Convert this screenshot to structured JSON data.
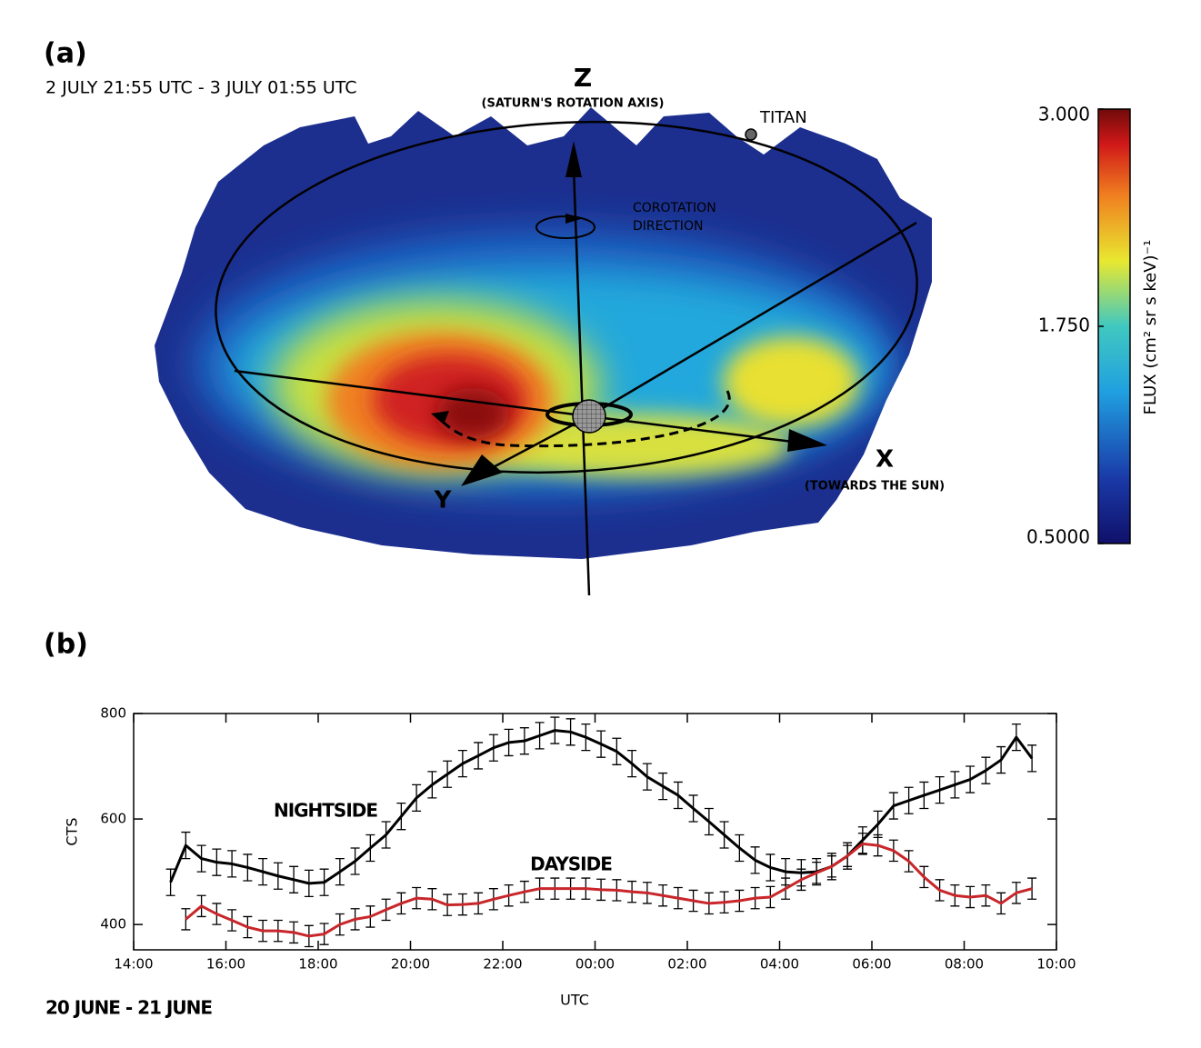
{
  "chart_data": [
    {
      "type": "image",
      "panel_label": "(a)",
      "subtitle": "2 JULY 21:55 UTC - 3 JULY 01:55 UTC",
      "annotations": [
        "Z",
        "(SATURN'S ROTATION AXIS)",
        "TITAN",
        "COROTATION",
        "DIRECTION",
        "X",
        "(TOWARDS THE SUN)",
        "Y"
      ],
      "colorbar": {
        "label": "FLUX (cm² sr s keV)⁻¹",
        "clim": [
          0.5,
          3.0
        ],
        "ticks": [
          {
            "value": 0.5,
            "label": "0.5000"
          },
          {
            "value": 1.75,
            "label": "1.750"
          },
          {
            "value": 3,
            "label": "3.000"
          }
        ]
      }
    },
    {
      "type": "line",
      "panel_label": "(b)",
      "date_label": "20 JUNE - 21 JUNE",
      "xlabel": "UTC",
      "ylabel": "CTS",
      "x": [
        14.8,
        15.13,
        15.47,
        15.8,
        16.13,
        16.47,
        16.8,
        17.13,
        17.47,
        17.8,
        18.13,
        18.47,
        18.8,
        19.13,
        19.47,
        19.8,
        20.13,
        20.47,
        20.8,
        21.13,
        21.47,
        21.8,
        22.13,
        22.47,
        22.8,
        23.13,
        23.47,
        23.8,
        24.13,
        24.47,
        24.8,
        25.13,
        25.47,
        25.8,
        26.13,
        26.47,
        26.8,
        27.13,
        27.47,
        27.8,
        28.13,
        28.47,
        28.8,
        29.13,
        29.47,
        29.8,
        30.13,
        30.47,
        30.8,
        31.13,
        31.47,
        31.8,
        32.13,
        32.47,
        32.8,
        33.13,
        33.47
      ],
      "xlim": [
        14,
        34
      ],
      "xticks": [
        {
          "value": 14,
          "label": "14:00"
        },
        {
          "value": 16,
          "label": "16:00"
        },
        {
          "value": 18,
          "label": "18:00"
        },
        {
          "value": 20,
          "label": "20:00"
        },
        {
          "value": 22,
          "label": "22:00"
        },
        {
          "value": 24,
          "label": "00:00"
        },
        {
          "value": 26,
          "label": "02:00"
        },
        {
          "value": 28,
          "label": "04:00"
        },
        {
          "value": 30,
          "label": "06:00"
        },
        {
          "value": 32,
          "label": "08:00"
        },
        {
          "value": 34,
          "label": "10:00"
        }
      ],
      "ylim": [
        352,
        800
      ],
      "yticks": [
        400,
        600,
        800
      ],
      "series": [
        {
          "name": "NIGHTSIDE",
          "color": "#000000",
          "error": 25,
          "values": [
            480,
            550,
            525,
            518,
            515,
            508,
            500,
            492,
            485,
            478,
            480,
            500,
            520,
            545,
            570,
            605,
            640,
            665,
            685,
            705,
            720,
            735,
            745,
            748,
            758,
            768,
            765,
            755,
            742,
            728,
            705,
            680,
            662,
            645,
            620,
            595,
            570,
            545,
            522,
            508,
            500,
            498,
            500,
            510,
            530,
            560,
            590,
            625,
            635,
            645,
            655,
            665,
            675,
            692,
            712,
            755,
            715
          ]
        },
        {
          "name": "DAYSIDE",
          "color": "#c8262a",
          "error": 20,
          "values": [
            null,
            410,
            435,
            420,
            408,
            395,
            388,
            388,
            385,
            378,
            382,
            400,
            410,
            415,
            428,
            440,
            450,
            448,
            437,
            438,
            440,
            448,
            455,
            462,
            468,
            468,
            468,
            468,
            466,
            465,
            462,
            460,
            455,
            450,
            445,
            440,
            442,
            445,
            450,
            452,
            468,
            485,
            498,
            510,
            530,
            553,
            550,
            540,
            520,
            490,
            465,
            455,
            452,
            455,
            440,
            460,
            468
          ]
        }
      ]
    }
  ]
}
